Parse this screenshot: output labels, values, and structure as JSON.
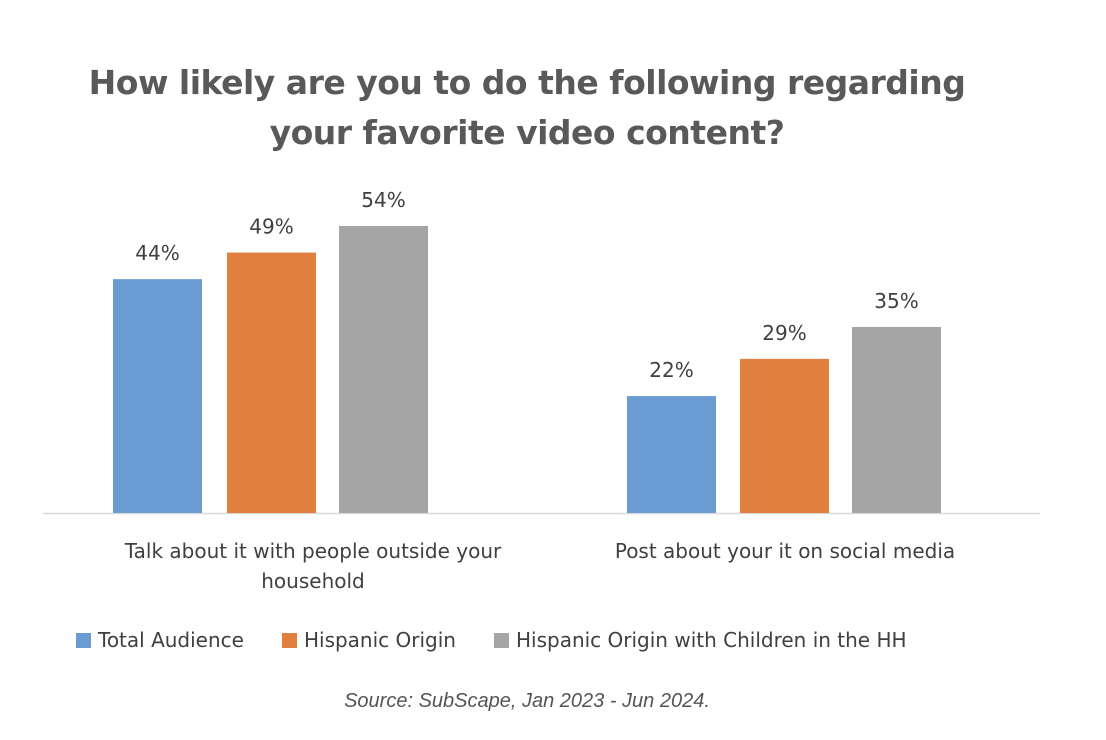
{
  "chart_data": {
    "type": "bar",
    "title": "How likely are you to do the following regarding your favorite video content?",
    "title_lines": [
      "How likely are you to do the following regarding",
      "your favorite video content?"
    ],
    "categories": [
      "Talk about it with people outside your household",
      "Post about your it on social media"
    ],
    "category_lines": [
      [
        "Talk about it with people outside your",
        "household"
      ],
      [
        "Post about your it on social media"
      ]
    ],
    "series": [
      {
        "name": "Total Audience",
        "color": "#6A9BD3",
        "values": [
          44,
          22
        ],
        "labels": [
          "44%",
          "22%"
        ]
      },
      {
        "name": "Hispanic Origin",
        "color": "#E07F3E",
        "values": [
          49,
          29
        ],
        "labels": [
          "49%",
          "29%"
        ]
      },
      {
        "name": "Hispanic Origin with Children in the HH",
        "color": "#A5A5A5",
        "values": [
          54,
          35
        ],
        "labels": [
          "54%",
          "35%"
        ]
      }
    ],
    "xlabel": "",
    "ylabel": "",
    "ylim": [
      0,
      54
    ],
    "legend": "bottom",
    "grid": false
  },
  "source": "Source: SubScape, Jan 2023 - Jun 2024."
}
